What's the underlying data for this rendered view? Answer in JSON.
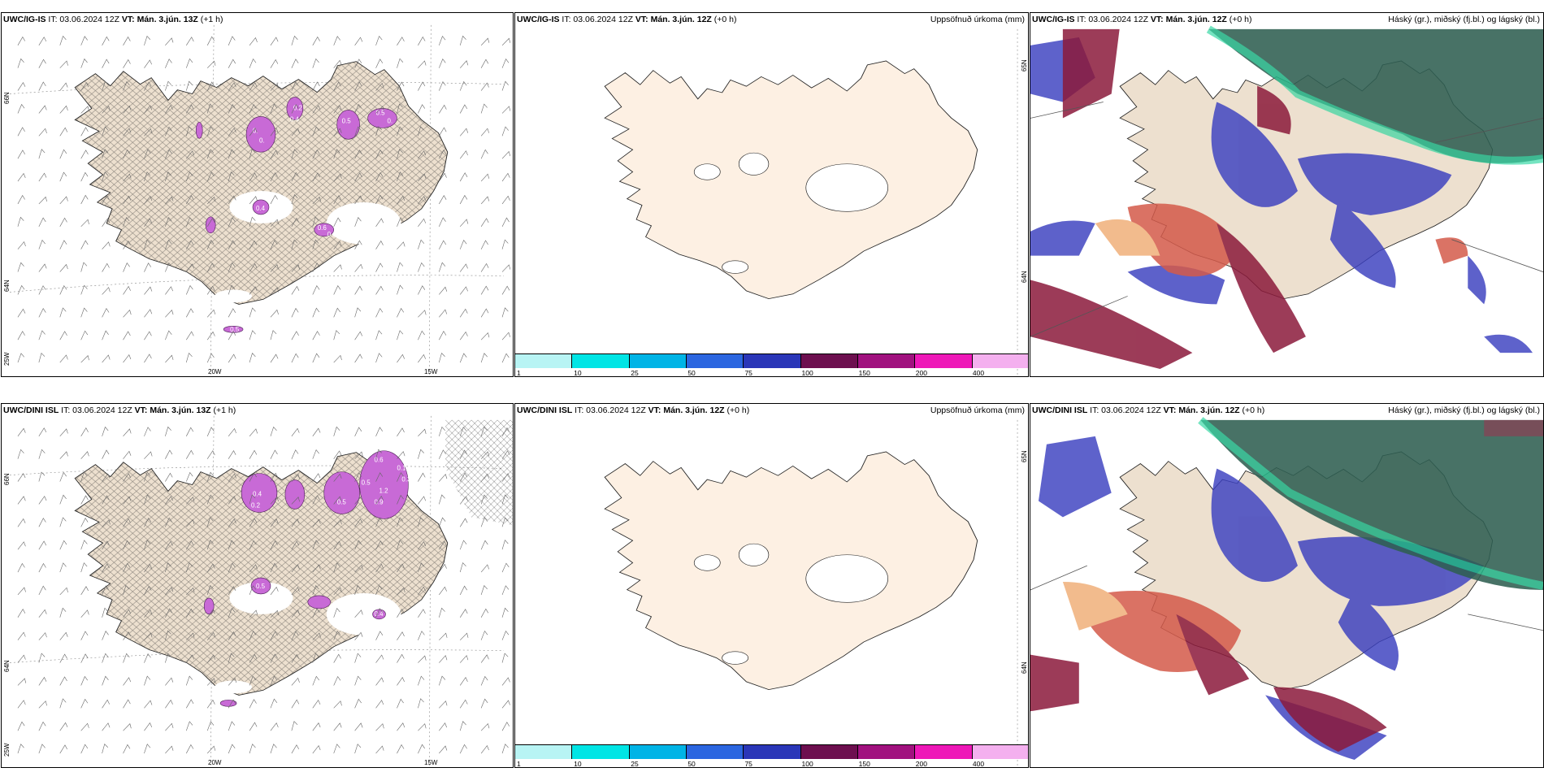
{
  "colors": {
    "land": "#ede0cf",
    "land_light": "#fdf0e3",
    "white": "#ffffff",
    "purple": "#c86ad6",
    "purple_dark": "#8a2f96",
    "blue": "#3a3fbf",
    "blue_light": "#6f9be8",
    "red_dark": "#8b1a3b",
    "red": "#d45a4a",
    "orange": "#f0b07a",
    "green_dark": "#2f5f52",
    "green": "#1fd39a"
  },
  "panels": [
    {
      "id": "top-left",
      "title_model": "UWC/IG-IS",
      "title_it": " IT: 03.06.2024 12Z ",
      "title_vt_label": "VT:",
      "title_vt": " Mán. 3.jún. 13Z",
      "title_lead": " (+1 h)",
      "lat_labels": [
        "66N",
        "64N",
        "25W"
      ],
      "lon_labels": [
        "20W",
        "15W"
      ],
      "cell_values": [
        "0.",
        "0.",
        "0.2",
        "0.4",
        "0.5",
        "0.5",
        "0.",
        "0.6",
        "0.1",
        "0.4",
        "0.5"
      ]
    },
    {
      "id": "top-middle",
      "title_model": "UWC/IG-IS",
      "title_it": " IT: 03.06.2024 12Z ",
      "title_vt_label": "VT:",
      "title_vt": " Mán. 3.jún. 12Z",
      "title_lead": " (+0 h)",
      "right_label": "Uppsöfnuð úrkoma (mm)",
      "lat_labels": [
        "65N",
        "64N"
      ]
    },
    {
      "id": "top-right",
      "title_model": "UWC/IG-IS",
      "title_it": " IT: 03.06.2024 12Z ",
      "title_vt_label": "VT:",
      "title_vt": " Mán. 3.jún. 12Z",
      "title_lead": " (+0 h)",
      "right_label": "Háský (gr.), miðský (fj.bl.) og lágský (bl.)"
    },
    {
      "id": "bottom-left",
      "title_model": "UWC/DINI ISL",
      "title_it": " IT: 03.06.2024 12Z ",
      "title_vt_label": "VT:",
      "title_vt": " Mán. 3.jún. 13Z",
      "title_lead": " (+1 h)",
      "lat_labels": [
        "66N",
        "64N",
        "25W"
      ],
      "lon_labels": [
        "20W",
        "15W"
      ],
      "cell_values": [
        "0.6",
        "0.1",
        "0.3",
        "0.5",
        "1.2",
        "0.9",
        "0.5",
        "0.4",
        "0.2",
        "0.5",
        "0.4"
      ]
    },
    {
      "id": "bottom-middle",
      "title_model": "UWC/DINI ISL",
      "title_it": " IT: 03.06.2024 12Z ",
      "title_vt_label": "VT:",
      "title_vt": " Mán. 3.jún. 12Z",
      "title_lead": " (+0 h)",
      "right_label": "Uppsöfnuð úrkoma (mm)",
      "lat_labels": [
        "65N",
        "64N"
      ]
    },
    {
      "id": "bottom-right",
      "title_model": "UWC/DINI ISL",
      "title_it": " IT: 03.06.2024 12Z ",
      "title_vt_label": "VT:",
      "title_vt": " Mán. 3.jún. 12Z",
      "title_lead": " (+0 h)",
      "right_label": "Háský (gr.), miðský (fj.bl.) og lágský (bl.)"
    }
  ],
  "colorbar": {
    "labels": [
      "1",
      "10",
      "25",
      "50",
      "75",
      "100",
      "150",
      "200",
      "400"
    ],
    "colors": [
      "#b8f4f4",
      "#00e5e5",
      "#00b4e6",
      "#2b66e0",
      "#2a36b8",
      "#6d0f4f",
      "#a1117f",
      "#ee18b8",
      "#f4b0ef"
    ]
  }
}
